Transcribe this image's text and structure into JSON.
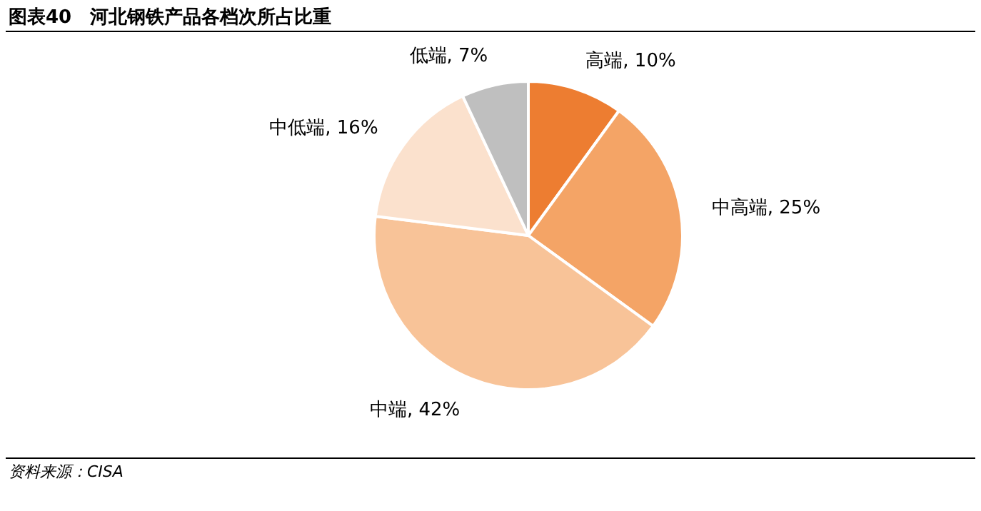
{
  "chart_data": {
    "type": "pie",
    "title": "图表40　河北钢铁产品各档次所占比重",
    "categories": [
      "高端",
      "中高端",
      "中端",
      "中低端",
      "低端"
    ],
    "values": [
      10,
      25,
      42,
      16,
      7
    ],
    "value_labels": [
      "10%",
      "25%",
      "42%",
      "16%",
      "7%"
    ],
    "colors": [
      "#ed7d31",
      "#f4a466",
      "#f8c398",
      "#fbe1cd",
      "#bfbfbf"
    ],
    "annotations": [
      "资料来源：CISA"
    ]
  }
}
